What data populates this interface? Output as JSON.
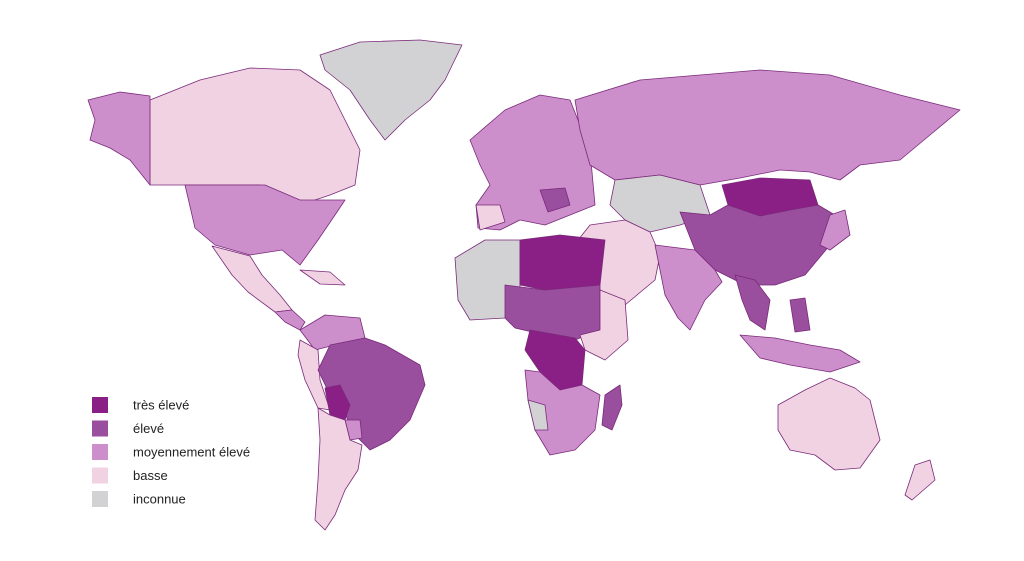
{
  "legend": {
    "items": [
      {
        "label": "très élevé",
        "color": "#8a1f86"
      },
      {
        "label": "élevé",
        "color": "#9a4e9e"
      },
      {
        "label": "moyennement élevé",
        "color": "#cc8fcc"
      },
      {
        "label": "basse",
        "color": "#f0d2e2"
      },
      {
        "label": "inconnue",
        "color": "#d2d2d4"
      }
    ]
  }
}
